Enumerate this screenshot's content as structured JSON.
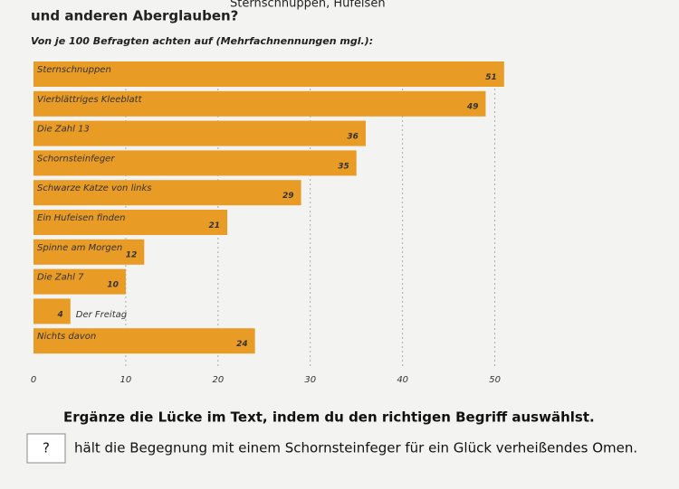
{
  "header": {
    "title_top": "Sternschnuppen, Hufeisen",
    "title": "und anderen Aberglauben?"
  },
  "chart_data": {
    "type": "bar",
    "orientation": "horizontal",
    "subtitle": "Von je 100 Befragten achten auf (Mehrfachnennungen mgl.):",
    "categories": [
      "Sternschnuppen",
      "Vierblättriges Kleeblatt",
      "Die Zahl 13",
      "Schornsteinfeger",
      "Schwarze Katze von links",
      "Ein Hufeisen finden",
      "Spinne am Morgen",
      "Die Zahl 7",
      "Der Freitag",
      "Nichts davon"
    ],
    "values": [
      51,
      49,
      36,
      35,
      29,
      21,
      12,
      10,
      4,
      24
    ],
    "color": "#e89b25",
    "xlim": [
      0,
      52
    ],
    "xticks": [
      0,
      10,
      20,
      30,
      40,
      50
    ],
    "grid": true
  },
  "question": {
    "prompt": "Ergänze die Lücke im Text, indem du den richtigen Begriff auswählst.",
    "blank": "?",
    "sentence": "hält die Begegnung mit einem Schornsteinfeger für ein Glück verheißendes Omen."
  }
}
